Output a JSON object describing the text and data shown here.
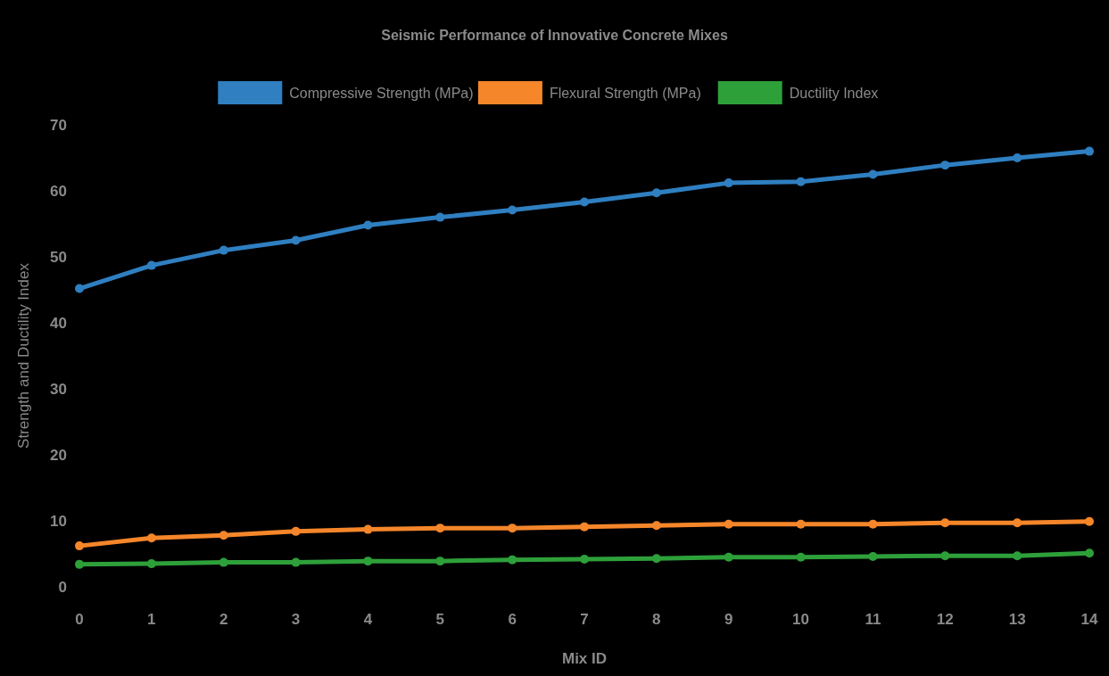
{
  "chart_data": {
    "type": "line",
    "title": "Seismic Performance of Innovative Concrete Mixes",
    "xlabel": "Mix ID",
    "ylabel": "Strength and Ductility Index",
    "x": [
      0,
      1,
      2,
      3,
      4,
      5,
      6,
      7,
      8,
      9,
      10,
      11,
      12,
      13,
      14
    ],
    "xlim": [
      0,
      14
    ],
    "xticks": [
      0,
      1,
      2,
      3,
      4,
      5,
      6,
      7,
      8,
      9,
      10,
      11,
      12,
      13,
      14
    ],
    "ylim": [
      0,
      70
    ],
    "yticks": [
      0,
      10,
      20,
      30,
      40,
      50,
      60,
      70
    ],
    "grid": false,
    "legend": "top",
    "marker": "circle",
    "line_style": "solid",
    "series": [
      {
        "name": "Compressive Strength (MPa)",
        "color": "#2f7fc1",
        "values": [
          45.2,
          48.7,
          51.0,
          52.5,
          54.8,
          56.0,
          57.1,
          58.3,
          59.7,
          61.2,
          61.4,
          62.5,
          63.9,
          65.0,
          66.0
        ]
      },
      {
        "name": "Flexural Strength (MPa)",
        "color": "#f5862a",
        "values": [
          6.2,
          7.4,
          7.8,
          8.4,
          8.7,
          8.9,
          8.9,
          9.1,
          9.3,
          9.5,
          9.5,
          9.5,
          9.7,
          9.7,
          9.9
        ]
      },
      {
        "name": "Ductility Index",
        "color": "#2ea03a",
        "values": [
          3.4,
          3.5,
          3.7,
          3.7,
          3.9,
          3.9,
          4.1,
          4.2,
          4.3,
          4.5,
          4.5,
          4.6,
          4.7,
          4.7,
          5.1
        ]
      }
    ]
  }
}
